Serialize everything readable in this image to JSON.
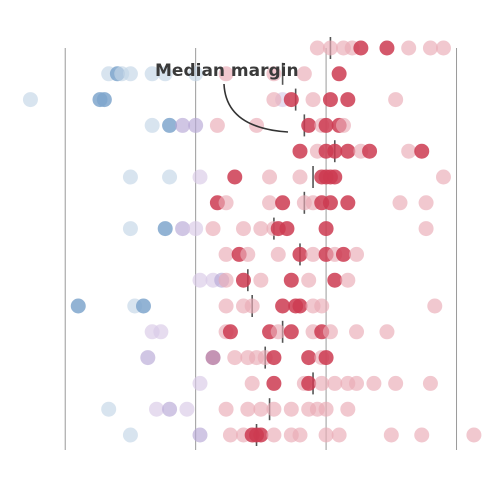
{
  "chart_data": {
    "type": "scatter",
    "title": "",
    "xlabel": "",
    "ylabel": "",
    "xlim": [
      -75,
      40
    ],
    "gridlines_x": [
      -60,
      -30,
      0,
      30
    ],
    "grid": true,
    "annotation": "Median margin",
    "colors": {
      "strong_dem": "#7fa6cc",
      "lean_dem": "#c3d5e6",
      "purple_dark": "#a45b8c",
      "purple": "#b7a8d6",
      "purple_light": "#d9c9e6",
      "lean_rep": "#e9aab5",
      "strong_rep": "#cc3b51",
      "median_tick": "#555555",
      "gridline": "#9a9a9a"
    },
    "rows": [
      {
        "row": 0,
        "median": 1,
        "points": [
          [
            -2,
            "lean_rep"
          ],
          [
            1,
            "lean_rep"
          ],
          [
            4,
            "lean_rep"
          ],
          [
            6,
            "lean_rep"
          ],
          [
            8,
            "strong_rep"
          ],
          [
            14,
            "strong_rep"
          ],
          [
            19,
            "lean_rep"
          ],
          [
            24,
            "lean_rep"
          ],
          [
            27,
            "lean_rep"
          ]
        ]
      },
      {
        "row": 1,
        "median": -10,
        "points": [
          [
            -50,
            "lean_dem"
          ],
          [
            -48,
            "strong_dem"
          ],
          [
            -47,
            "lean_dem"
          ],
          [
            -45,
            "lean_dem"
          ],
          [
            -40,
            "lean_dem"
          ],
          [
            -37,
            "lean_dem"
          ],
          [
            -30,
            "lean_dem"
          ],
          [
            -23,
            "lean_rep"
          ],
          [
            -12,
            "lean_rep"
          ],
          [
            -5,
            "lean_rep"
          ],
          [
            3,
            "strong_rep"
          ]
        ]
      },
      {
        "row": 2,
        "median": -7,
        "points": [
          [
            -68,
            "lean_dem"
          ],
          [
            -52,
            "strong_dem"
          ],
          [
            -51,
            "strong_dem"
          ],
          [
            -10,
            "purple_light"
          ],
          [
            -12,
            "lean_rep"
          ],
          [
            -8,
            "strong_rep"
          ],
          [
            -3,
            "lean_rep"
          ],
          [
            1,
            "strong_rep"
          ],
          [
            5,
            "strong_rep"
          ],
          [
            16,
            "lean_rep"
          ]
        ]
      },
      {
        "row": 3,
        "median": -5,
        "points": [
          [
            -40,
            "lean_dem"
          ],
          [
            -36,
            "strong_dem"
          ],
          [
            -33,
            "purple"
          ],
          [
            -30,
            "purple"
          ],
          [
            -25,
            "lean_rep"
          ],
          [
            -16,
            "lean_rep"
          ],
          [
            -4,
            "strong_rep"
          ],
          [
            -1,
            "lean_rep"
          ],
          [
            0,
            "strong_rep"
          ],
          [
            3,
            "strong_rep"
          ],
          [
            4,
            "lean_rep"
          ]
        ]
      },
      {
        "row": 4,
        "median": 2,
        "points": [
          [
            -6,
            "strong_rep"
          ],
          [
            -2,
            "lean_rep"
          ],
          [
            0,
            "strong_rep"
          ],
          [
            2,
            "strong_rep"
          ],
          [
            5,
            "strong_rep"
          ],
          [
            8,
            "lean_rep"
          ],
          [
            10,
            "strong_rep"
          ],
          [
            19,
            "lean_rep"
          ],
          [
            22,
            "strong_rep"
          ]
        ]
      },
      {
        "row": 5,
        "median": -3,
        "points": [
          [
            -45,
            "lean_dem"
          ],
          [
            -36,
            "lean_dem"
          ],
          [
            -29,
            "purple_light"
          ],
          [
            -21,
            "strong_rep"
          ],
          [
            -13,
            "lean_rep"
          ],
          [
            -6,
            "lean_rep"
          ],
          [
            -1,
            "strong_rep"
          ],
          [
            0,
            "strong_rep"
          ],
          [
            1,
            "strong_rep"
          ],
          [
            2,
            "strong_rep"
          ],
          [
            27,
            "lean_rep"
          ]
        ]
      },
      {
        "row": 6,
        "median": -5,
        "points": [
          [
            -25,
            "strong_rep"
          ],
          [
            -23,
            "lean_rep"
          ],
          [
            -13,
            "lean_rep"
          ],
          [
            -10,
            "strong_rep"
          ],
          [
            -5,
            "lean_rep"
          ],
          [
            -3,
            "lean_rep"
          ],
          [
            -1,
            "strong_rep"
          ],
          [
            1,
            "strong_rep"
          ],
          [
            5,
            "strong_rep"
          ],
          [
            17,
            "lean_rep"
          ],
          [
            23,
            "lean_rep"
          ]
        ]
      },
      {
        "row": 7,
        "median": -12,
        "points": [
          [
            -45,
            "lean_dem"
          ],
          [
            -37,
            "strong_dem"
          ],
          [
            -33,
            "purple"
          ],
          [
            -30,
            "purple_light"
          ],
          [
            -26,
            "lean_rep"
          ],
          [
            -19,
            "lean_rep"
          ],
          [
            -15,
            "lean_rep"
          ],
          [
            -12,
            "lean_rep"
          ],
          [
            -11,
            "strong_rep"
          ],
          [
            -9,
            "strong_rep"
          ],
          [
            0,
            "strong_rep"
          ],
          [
            23,
            "lean_rep"
          ]
        ]
      },
      {
        "row": 8,
        "median": -6,
        "points": [
          [
            -23,
            "lean_rep"
          ],
          [
            -20,
            "strong_rep"
          ],
          [
            -18,
            "lean_rep"
          ],
          [
            -11,
            "lean_rep"
          ],
          [
            -6,
            "strong_rep"
          ],
          [
            -3,
            "lean_rep"
          ],
          [
            0,
            "strong_rep"
          ],
          [
            2,
            "lean_rep"
          ],
          [
            4,
            "strong_rep"
          ],
          [
            7,
            "lean_rep"
          ]
        ]
      },
      {
        "row": 9,
        "median": -18,
        "points": [
          [
            -29,
            "purple_light"
          ],
          [
            -26,
            "purple_light"
          ],
          [
            -24,
            "purple"
          ],
          [
            -23,
            "lean_rep"
          ],
          [
            -19,
            "strong_rep"
          ],
          [
            -15,
            "lean_rep"
          ],
          [
            -8,
            "strong_rep"
          ],
          [
            -4,
            "lean_rep"
          ],
          [
            2,
            "strong_rep"
          ],
          [
            5,
            "lean_rep"
          ]
        ]
      },
      {
        "row": 10,
        "median": -17,
        "points": [
          [
            -57,
            "strong_dem"
          ],
          [
            -44,
            "lean_dem"
          ],
          [
            -42,
            "strong_dem"
          ],
          [
            -23,
            "lean_rep"
          ],
          [
            -19,
            "lean_rep"
          ],
          [
            -17,
            "lean_rep"
          ],
          [
            -10,
            "strong_rep"
          ],
          [
            -7,
            "strong_rep"
          ],
          [
            -6,
            "strong_rep"
          ],
          [
            -3,
            "lean_rep"
          ],
          [
            -1,
            "lean_rep"
          ],
          [
            25,
            "lean_rep"
          ]
        ]
      },
      {
        "row": 11,
        "median": -10,
        "points": [
          [
            -40,
            "purple_light"
          ],
          [
            -38,
            "purple_light"
          ],
          [
            -23,
            "lean_rep"
          ],
          [
            -22,
            "strong_rep"
          ],
          [
            -13,
            "strong_rep"
          ],
          [
            -11,
            "lean_rep"
          ],
          [
            -8,
            "strong_rep"
          ],
          [
            -3,
            "lean_rep"
          ],
          [
            -1,
            "strong_rep"
          ],
          [
            1,
            "lean_rep"
          ],
          [
            7,
            "lean_rep"
          ],
          [
            14,
            "lean_rep"
          ]
        ]
      },
      {
        "row": 12,
        "median": -14,
        "points": [
          [
            -41,
            "purple"
          ],
          [
            -26,
            "purple_dark"
          ],
          [
            -21,
            "lean_rep"
          ],
          [
            -18,
            "lean_rep"
          ],
          [
            -16,
            "lean_rep"
          ],
          [
            -14,
            "lean_rep"
          ],
          [
            -12,
            "strong_rep"
          ],
          [
            -4,
            "strong_rep"
          ],
          [
            -1,
            "lean_rep"
          ],
          [
            0,
            "strong_rep"
          ]
        ]
      },
      {
        "row": 13,
        "median": -3,
        "points": [
          [
            -29,
            "purple_light"
          ],
          [
            -17,
            "lean_rep"
          ],
          [
            -12,
            "strong_rep"
          ],
          [
            -5,
            "lean_rep"
          ],
          [
            -4,
            "strong_rep"
          ],
          [
            -1,
            "lean_rep"
          ],
          [
            2,
            "lean_rep"
          ],
          [
            5,
            "lean_rep"
          ],
          [
            7,
            "lean_rep"
          ],
          [
            11,
            "lean_rep"
          ],
          [
            16,
            "lean_rep"
          ],
          [
            24,
            "lean_rep"
          ]
        ]
      },
      {
        "row": 14,
        "median": -13,
        "points": [
          [
            -50,
            "lean_dem"
          ],
          [
            -39,
            "purple_light"
          ],
          [
            -36,
            "purple"
          ],
          [
            -32,
            "purple_light"
          ],
          [
            -23,
            "lean_rep"
          ],
          [
            -18,
            "lean_rep"
          ],
          [
            -15,
            "lean_rep"
          ],
          [
            -12,
            "lean_rep"
          ],
          [
            -8,
            "lean_rep"
          ],
          [
            -4,
            "lean_rep"
          ],
          [
            -2,
            "lean_rep"
          ],
          [
            0,
            "lean_rep"
          ],
          [
            5,
            "lean_rep"
          ]
        ]
      },
      {
        "row": 15,
        "median": -16,
        "points": [
          [
            -45,
            "lean_dem"
          ],
          [
            -29,
            "purple"
          ],
          [
            -22,
            "lean_rep"
          ],
          [
            -19,
            "lean_rep"
          ],
          [
            -17,
            "strong_rep"
          ],
          [
            -16,
            "strong_rep"
          ],
          [
            -15,
            "strong_rep"
          ],
          [
            -12,
            "lean_rep"
          ],
          [
            -8,
            "lean_rep"
          ],
          [
            -6,
            "lean_rep"
          ],
          [
            0,
            "lean_rep"
          ],
          [
            3,
            "lean_rep"
          ],
          [
            15,
            "lean_rep"
          ],
          [
            22,
            "lean_rep"
          ],
          [
            34,
            "lean_rep"
          ]
        ]
      }
    ]
  }
}
